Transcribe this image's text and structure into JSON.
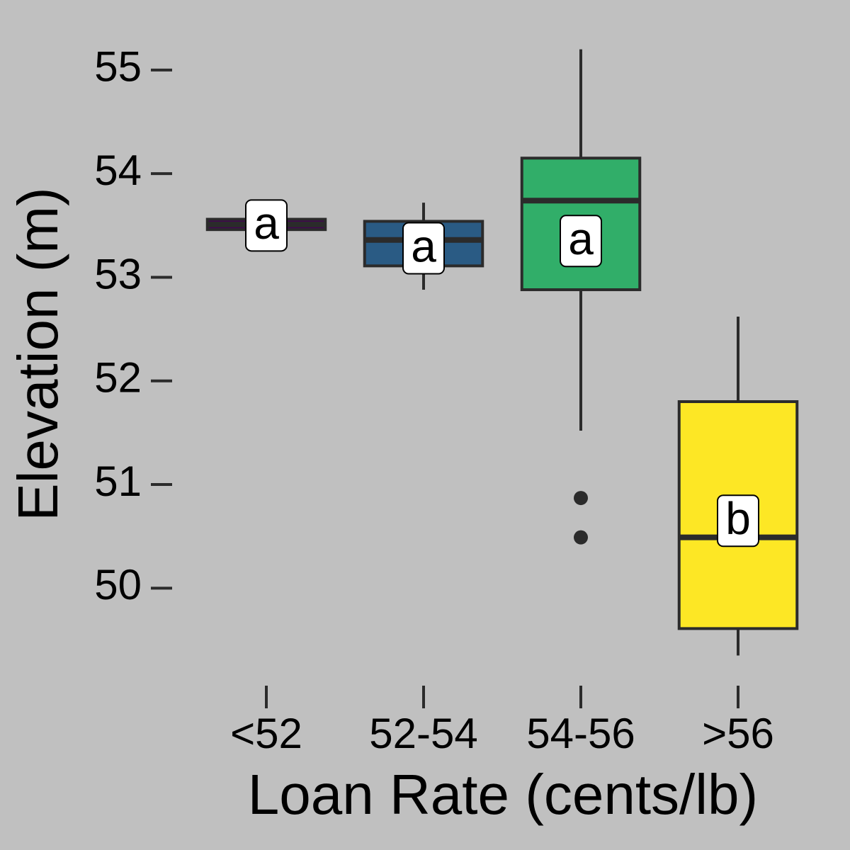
{
  "chart_data": {
    "type": "box",
    "x_label": "Loan Rate (cents/lb)",
    "y_label": "Elevation (m)",
    "categories": [
      "<52",
      "52-54",
      "54-56",
      ">56"
    ],
    "colors": [
      "#440154",
      "#2a5b84",
      "#31ae69",
      "#fde725"
    ],
    "boxes": [
      {
        "min": 53.46,
        "q1": 53.46,
        "median": 53.51,
        "q3": 53.56,
        "max": 53.56,
        "outliers": []
      },
      {
        "min": 52.88,
        "q1": 53.11,
        "median": 53.36,
        "q3": 53.54,
        "max": 53.72,
        "outliers": []
      },
      {
        "min": 51.52,
        "q1": 52.88,
        "median": 53.74,
        "q3": 54.15,
        "max": 55.2,
        "outliers": [
          50.87,
          50.49
        ]
      },
      {
        "min": 49.35,
        "q1": 49.61,
        "median": 50.49,
        "q3": 51.8,
        "max": 52.62,
        "outliers": []
      }
    ],
    "letters": [
      "a",
      "a",
      "a",
      "b"
    ],
    "letter_values": [
      53.5,
      53.28,
      53.35,
      50.65
    ],
    "ylim": [
      49.1,
      55.3
    ],
    "yticks": [
      50,
      51,
      52,
      53,
      54,
      55
    ],
    "grid": false
  }
}
